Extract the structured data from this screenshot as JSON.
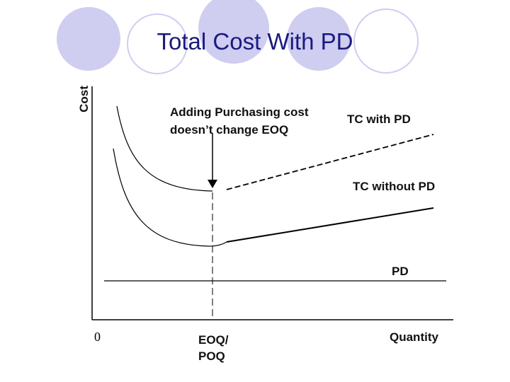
{
  "title": "Total Cost With PD",
  "y_axis_label": "Cost",
  "x_axis_label": "Quantity",
  "origin_label": "0",
  "eoq_label": [
    "EOQ/",
    "POQ"
  ],
  "note": [
    "Adding Purchasing cost",
    "doesn’t change EOQ"
  ],
  "curves": {
    "tc_with_pd": "TC with PD",
    "tc_without_pd": "TC without PD",
    "pd": "PD"
  }
}
